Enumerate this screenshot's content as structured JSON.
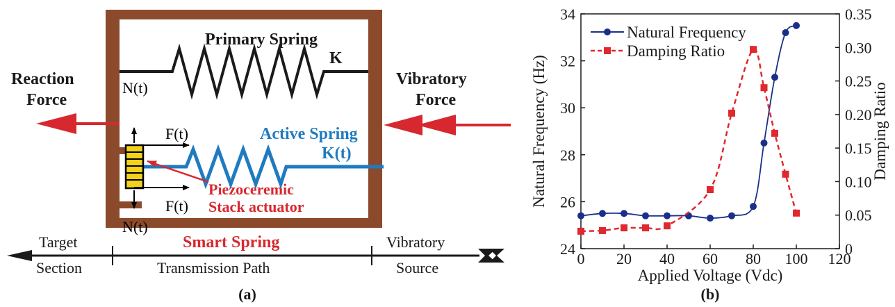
{
  "panel_a": {
    "labels": {
      "primary_spring": "Primary Spring",
      "primary_k": "K",
      "active_spring": "Active Spring",
      "active_k": "K(t)",
      "reaction_force_1": "Reaction",
      "reaction_force_2": "Force",
      "vibratory_force_1": "Vibratory",
      "vibratory_force_2": "Force",
      "n_top": "N(t)",
      "f_top": "F(t)",
      "f_bottom": "F(t)",
      "n_bottom": "N(t)",
      "piezo_1": "Piezoceremic",
      "piezo_2": "Stack actuator",
      "smart_spring": "Smart Spring",
      "target": "Target",
      "section": "Section",
      "transmission_path": "Transmission Path",
      "vibratory": "Vibratory",
      "source": "Source",
      "caption": "(a)"
    },
    "colors": {
      "frame": "#8B4A2B",
      "red": "#D7282F",
      "blue": "#1F7BC0",
      "piezo": "#F2D21B"
    }
  },
  "panel_b": {
    "caption": "(b)"
  },
  "chart_data": {
    "type": "line",
    "xlabel": "Applied Voltage (Vdc)",
    "ylabel": "Natural Frequency (Hz)",
    "y2label": "Damping Ratio",
    "xlim": [
      0,
      120
    ],
    "ylim": [
      24,
      34
    ],
    "y2lim": [
      0,
      0.35
    ],
    "xticks": [
      "0",
      "20",
      "40",
      "60",
      "80",
      "100",
      "120"
    ],
    "yticks": [
      "24",
      "26",
      "28",
      "30",
      "32",
      "34"
    ],
    "y2ticks": [
      "0",
      "0.05",
      "0.10",
      "0.15",
      "0.20",
      "0.25",
      "0.30",
      "0.35"
    ],
    "legend_position": "top-left",
    "series": [
      {
        "name": "Natural Frequency",
        "axis": "left",
        "color": "#1A2F8A",
        "marker": "circle",
        "line": "solid",
        "x": [
          0,
          10,
          20,
          30,
          40,
          50,
          60,
          70,
          80,
          85,
          90,
          95,
          100
        ],
        "y": [
          25.4,
          25.5,
          25.5,
          25.4,
          25.4,
          25.4,
          25.3,
          25.4,
          25.8,
          28.5,
          31.3,
          33.2,
          33.5
        ]
      },
      {
        "name": "Damping Ratio",
        "axis": "right",
        "color": "#E0282F",
        "marker": "square",
        "line": "dashed",
        "x": [
          0,
          10,
          20,
          30,
          40,
          60,
          70,
          80,
          85,
          90,
          95,
          100
        ],
        "y": [
          0.026,
          0.027,
          0.031,
          0.031,
          0.034,
          0.088,
          0.202,
          0.297,
          0.24,
          0.172,
          0.111,
          0.053
        ]
      }
    ]
  }
}
